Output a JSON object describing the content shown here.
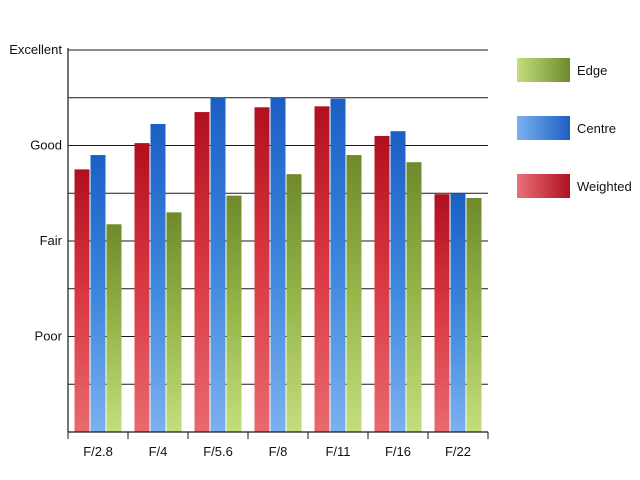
{
  "chart_data": {
    "type": "bar",
    "categories": [
      "F/2.8",
      "F/4",
      "F/5.6",
      "F/8",
      "F/11",
      "F/16",
      "F/22"
    ],
    "y_ticks": [
      "Poor",
      "Fair",
      "Good",
      "Excellent"
    ],
    "y_tick_values": [
      2,
      4,
      6,
      8
    ],
    "ylim": [
      0,
      8
    ],
    "gridlines": [
      1,
      2,
      3,
      4,
      5,
      6,
      7,
      8
    ],
    "grid": true,
    "legend_position": "right",
    "series": [
      {
        "name": "Weighted",
        "color": "#c0142a",
        "values": [
          5.5,
          6.05,
          6.7,
          6.8,
          6.82,
          6.2,
          4.98
        ]
      },
      {
        "name": "Centre",
        "color": "#2a6fcf",
        "values": [
          5.8,
          6.45,
          7.0,
          7.0,
          6.98,
          6.3,
          5.0
        ]
      },
      {
        "name": "Edge",
        "color": "#8aaa3a",
        "values": [
          4.35,
          4.6,
          4.95,
          5.4,
          5.8,
          5.65,
          4.9
        ]
      }
    ],
    "legend_order": [
      "Edge",
      "Centre",
      "Weighted"
    ]
  }
}
